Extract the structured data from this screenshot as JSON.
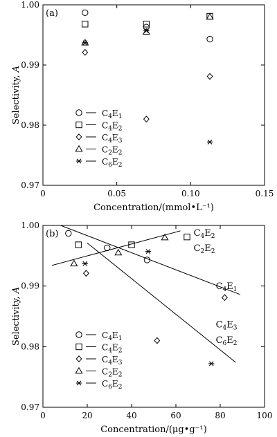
{
  "chart_data": [
    {
      "type": "scatter",
      "panel_label": "(a)",
      "xlabel": "Concentration/(mmol•L⁻¹)",
      "ylabel_main": "Selectivity, ",
      "ylabel_var": "A",
      "xlim": [
        0,
        0.15
      ],
      "ylim": [
        0.97,
        1.0
      ],
      "x_ticks": [
        0,
        0.05,
        0.1,
        0.15
      ],
      "x_tick_labels": [
        "0",
        "0.05",
        "0.10",
        "0.15"
      ],
      "y_ticks": [
        0.97,
        0.98,
        0.99,
        1.0
      ],
      "y_tick_labels": [
        "0.97",
        "0.98",
        "0.99",
        "1.00"
      ],
      "legend_position": "lower-left",
      "series": [
        {
          "base": "C",
          "sub1": "4",
          "mid": "E",
          "sub2": "1",
          "marker": "circle",
          "x": [
            0.0285,
            0.07,
            0.113
          ],
          "y": [
            0.9987,
            0.9963,
            0.9943
          ]
        },
        {
          "base": "C",
          "sub1": "4",
          "mid": "E",
          "sub2": "2",
          "marker": "square",
          "x": [
            0.0285,
            0.07,
            0.113
          ],
          "y": [
            0.9968,
            0.9968,
            0.9981
          ]
        },
        {
          "base": "C",
          "sub1": "4",
          "mid": "E",
          "sub2": "3",
          "marker": "diamond",
          "x": [
            0.0285,
            0.07,
            0.113
          ],
          "y": [
            0.9921,
            0.981,
            0.9881
          ]
        },
        {
          "base": "C",
          "sub1": "2",
          "mid": "E",
          "sub2": "2",
          "marker": "triangle",
          "x": [
            0.0285,
            0.07,
            0.113
          ],
          "y": [
            0.9937,
            0.9955,
            0.998
          ]
        },
        {
          "base": "C",
          "sub1": "6",
          "mid": "E",
          "sub2": "2",
          "marker": "star",
          "x": [
            0.0285,
            0.07,
            0.113
          ],
          "y": [
            0.9937,
            0.9957,
            0.9772
          ]
        }
      ]
    },
    {
      "type": "scatter",
      "panel_label": "(b)",
      "xlabel": "Concentration/(μg•g⁻¹)",
      "ylabel_main": "Selectivity, ",
      "ylabel_var": "A",
      "xlim": [
        0,
        100
      ],
      "ylim": [
        0.97,
        1.0
      ],
      "x_ticks": [
        0,
        20,
        40,
        60,
        80,
        100
      ],
      "x_tick_labels": [
        "0",
        "20",
        "40",
        "60",
        "80",
        "100"
      ],
      "y_ticks": [
        0.97,
        0.98,
        0.99,
        1.0
      ],
      "y_tick_labels": [
        "0.97",
        "0.98",
        "0.99",
        "1.00"
      ],
      "legend_position": "lower-left",
      "series": [
        {
          "base": "C",
          "sub1": "4",
          "mid": "E",
          "sub2": "1",
          "marker": "circle",
          "x": [
            11.5,
            29.0,
            47.0
          ],
          "y": [
            0.9987,
            0.9963,
            0.9943
          ]
        },
        {
          "base": "C",
          "sub1": "4",
          "mid": "E",
          "sub2": "2",
          "marker": "square",
          "x": [
            16.0,
            40.0,
            65.0
          ],
          "y": [
            0.9968,
            0.9968,
            0.9981
          ]
        },
        {
          "base": "C",
          "sub1": "4",
          "mid": "E",
          "sub2": "3",
          "marker": "diamond",
          "x": [
            19.5,
            51.5,
            82.0
          ],
          "y": [
            0.9921,
            0.981,
            0.9881
          ]
        },
        {
          "base": "C",
          "sub1": "2",
          "mid": "E",
          "sub2": "2",
          "marker": "triangle",
          "x": [
            14.0,
            34.0,
            55.0
          ],
          "y": [
            0.9937,
            0.9955,
            0.998
          ]
        },
        {
          "base": "C",
          "sub1": "6",
          "mid": "E",
          "sub2": "2",
          "marker": "star",
          "x": [
            19.0,
            47.5,
            76.0
          ],
          "y": [
            0.9937,
            0.9957,
            0.9772
          ]
        }
      ],
      "trend_lines": [
        {
          "from": [
            8,
            1.0
          ],
          "to": [
            89,
            0.9886
          ]
        },
        {
          "from": [
            4,
            0.9934
          ],
          "to": [
            62,
            0.9991
          ]
        },
        {
          "from": [
            20,
            0.9971
          ],
          "to": [
            87,
            0.9774
          ]
        }
      ],
      "annotations": [
        {
          "base": "C",
          "sub1": "4",
          "mid": "E",
          "sub2": "2",
          "x": 68,
          "y": 0.9983
        },
        {
          "base": "C",
          "sub1": "2",
          "mid": "E",
          "sub2": "2",
          "x": 68,
          "y": 0.9958
        },
        {
          "base": "C",
          "sub1": "4",
          "mid": "E",
          "sub2": "1",
          "x": 78,
          "y": 0.9895
        },
        {
          "base": "C",
          "sub1": "4",
          "mid": "E",
          "sub2": "3",
          "x": 78,
          "y": 0.9832
        },
        {
          "base": "C",
          "sub1": "6",
          "mid": "E",
          "sub2": "2",
          "x": 78,
          "y": 0.9806
        }
      ]
    }
  ]
}
